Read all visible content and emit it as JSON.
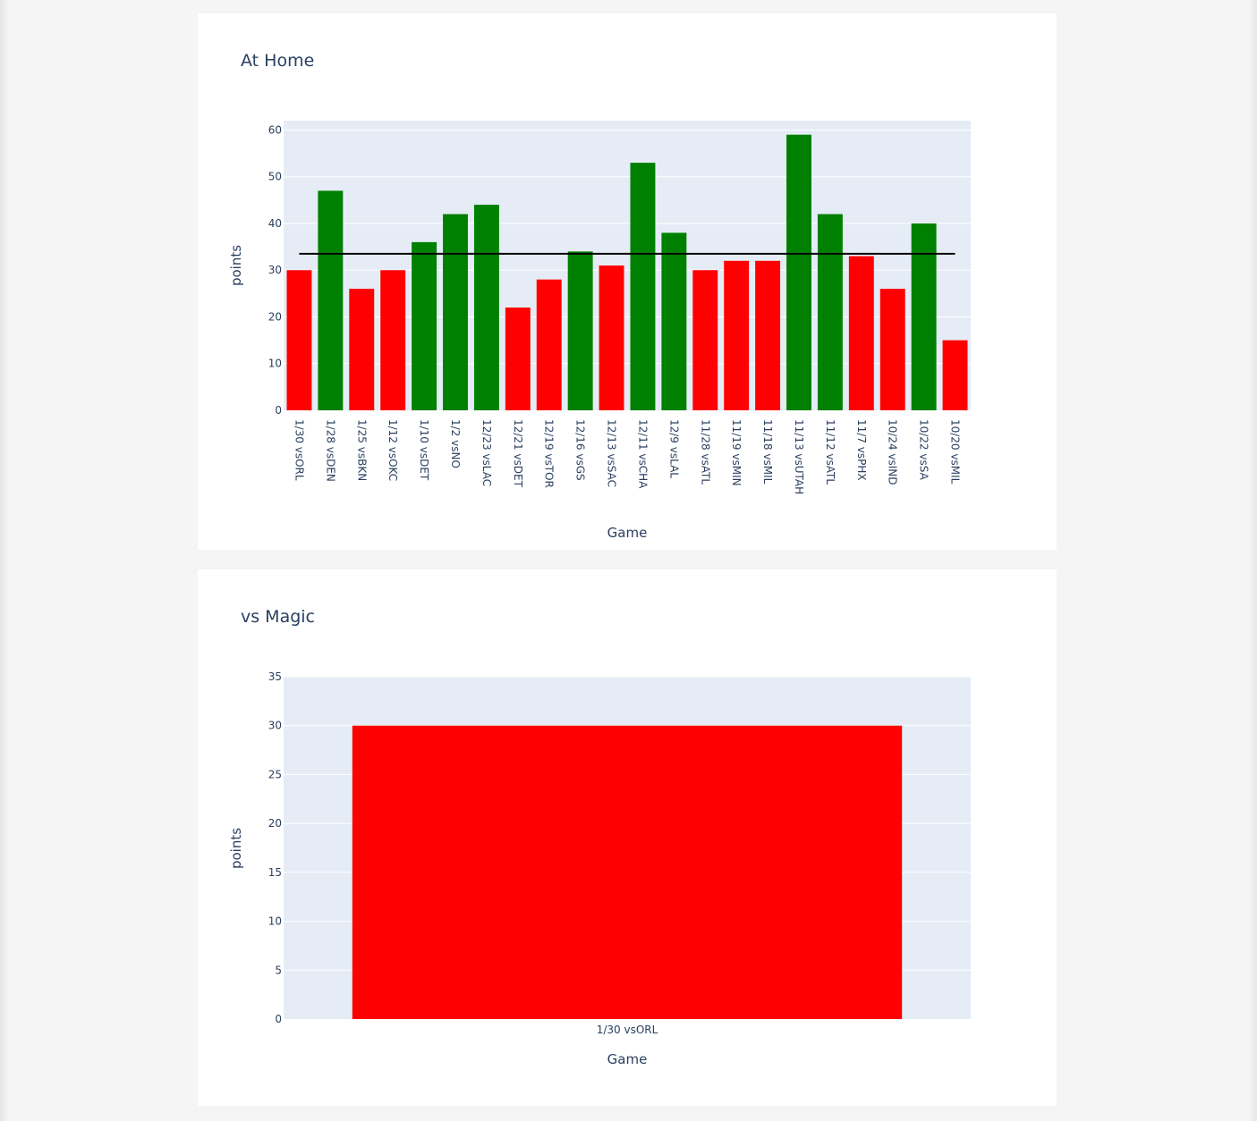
{
  "charts": [
    {
      "id": "home",
      "chart_data": {
        "type": "bar",
        "title": "At Home",
        "xlabel": "Game",
        "ylabel": "points",
        "ylim": [
          0,
          62
        ],
        "yticks": [
          0,
          10,
          20,
          30,
          40,
          50,
          60
        ],
        "categories": [
          "1/30 vsORL",
          "1/28 vsDEN",
          "1/25 vsBKN",
          "1/12 vsOKC",
          "1/10 vsDET",
          "1/2 vsNO",
          "12/23 vsLAC",
          "12/21 vsDET",
          "12/19 vsTOR",
          "12/16 vsGS",
          "12/13 vsSAC",
          "12/11 vsCHA",
          "12/9 vsLAL",
          "11/28 vsATL",
          "11/19 vsMIN",
          "11/18 vsMIL",
          "11/13 vsUTAH",
          "11/12 vsATL",
          "11/7 vsPHX",
          "10/24 vsIND",
          "10/22 vsSA",
          "10/20 vsMIL"
        ],
        "values": [
          30,
          47,
          26,
          30,
          36,
          42,
          44,
          22,
          28,
          34,
          31,
          53,
          38,
          30,
          32,
          32,
          59,
          42,
          33,
          26,
          40,
          15
        ],
        "bar_colors": [
          "#ff0000",
          "#008000",
          "#ff0000",
          "#ff0000",
          "#008000",
          "#008000",
          "#008000",
          "#ff0000",
          "#ff0000",
          "#008000",
          "#ff0000",
          "#008000",
          "#008000",
          "#ff0000",
          "#ff0000",
          "#ff0000",
          "#008000",
          "#008000",
          "#ff0000",
          "#ff0000",
          "#008000",
          "#ff0000"
        ],
        "reference_line": 33.5,
        "reference_line_color": "#000000",
        "tick_rotation": "vertical",
        "grid": true
      }
    },
    {
      "id": "magic",
      "chart_data": {
        "type": "bar",
        "title": "vs Magic",
        "xlabel": "Game",
        "ylabel": "points",
        "ylim": [
          0,
          35
        ],
        "yticks": [
          0,
          5,
          10,
          15,
          20,
          25,
          30,
          35
        ],
        "categories": [
          "1/30 vsORL"
        ],
        "values": [
          30
        ],
        "bar_colors": [
          "#ff0000"
        ],
        "tick_rotation": "horizontal",
        "grid": true
      }
    }
  ],
  "colors": {
    "plot_bg": "#e5ecf6",
    "grid": "#ffffff",
    "text": "#2a3f5f",
    "win": "#008000",
    "loss": "#ff0000"
  }
}
